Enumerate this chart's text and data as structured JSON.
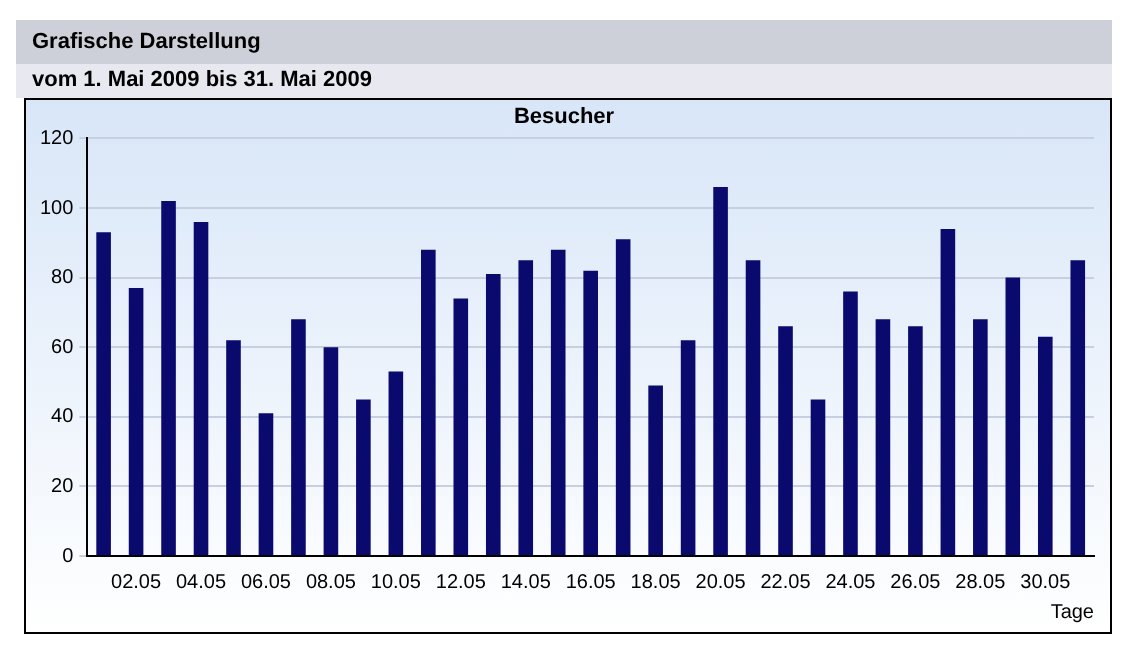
{
  "chart_data": {
    "type": "bar",
    "title": "Besucher",
    "subtitle": "Grafische Darstellung",
    "annotations": [
      "vom 1. Mai 2009  bis  31. Mai 2009"
    ],
    "xlabel": "Tage",
    "categories": [
      null,
      "02.05",
      null,
      "04.05",
      null,
      "06.05",
      null,
      "08.05",
      null,
      "10.05",
      null,
      "12.05",
      null,
      "14.05",
      null,
      "16.05",
      null,
      "18.05",
      null,
      "20.05",
      null,
      "22.05",
      null,
      "24.05",
      null,
      "26.05",
      null,
      "28.05",
      null,
      "30.05",
      null
    ],
    "values": [
      93,
      77,
      102,
      96,
      62,
      41,
      68,
      60,
      45,
      53,
      88,
      74,
      81,
      85,
      88,
      82,
      91,
      49,
      62,
      106,
      85,
      66,
      45,
      76,
      68,
      66,
      94,
      68,
      80,
      63,
      85
    ],
    "color": "#0a0a6e",
    "ylim": [
      0,
      120
    ],
    "yticks": [
      0,
      20,
      40,
      60,
      80,
      100,
      120
    ],
    "grid": "y",
    "legend": false
  }
}
